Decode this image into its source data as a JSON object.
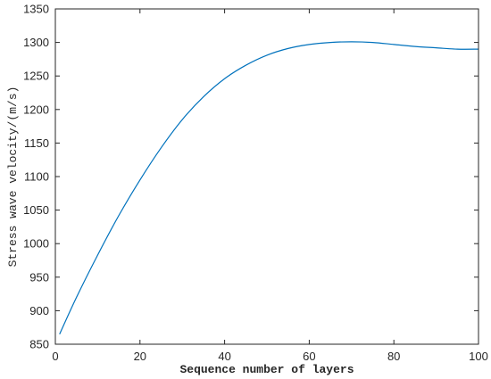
{
  "chart_data": {
    "type": "line",
    "title": "",
    "xlabel": "Sequence number of layers",
    "ylabel": "Stress wave velocity/(m/s)",
    "xlim": [
      0,
      100
    ],
    "ylim": [
      850,
      1350
    ],
    "xticks": [
      0,
      20,
      40,
      60,
      80,
      100
    ],
    "yticks": [
      850,
      900,
      950,
      1000,
      1050,
      1100,
      1150,
      1200,
      1250,
      1300,
      1350
    ],
    "grid": false,
    "legend": "none",
    "series": [
      {
        "color": "#0072BD",
        "x": [
          1,
          5,
          10,
          15,
          20,
          25,
          30,
          35,
          40,
          45,
          50,
          55,
          60,
          65,
          70,
          75,
          80,
          85,
          90,
          95,
          100
        ],
        "y": [
          865,
          920,
          983,
          1042,
          1095,
          1143,
          1185,
          1219,
          1246,
          1266,
          1281,
          1291,
          1297,
          1300,
          1301,
          1300,
          1297,
          1294,
          1292,
          1290,
          1290
        ]
      }
    ]
  }
}
